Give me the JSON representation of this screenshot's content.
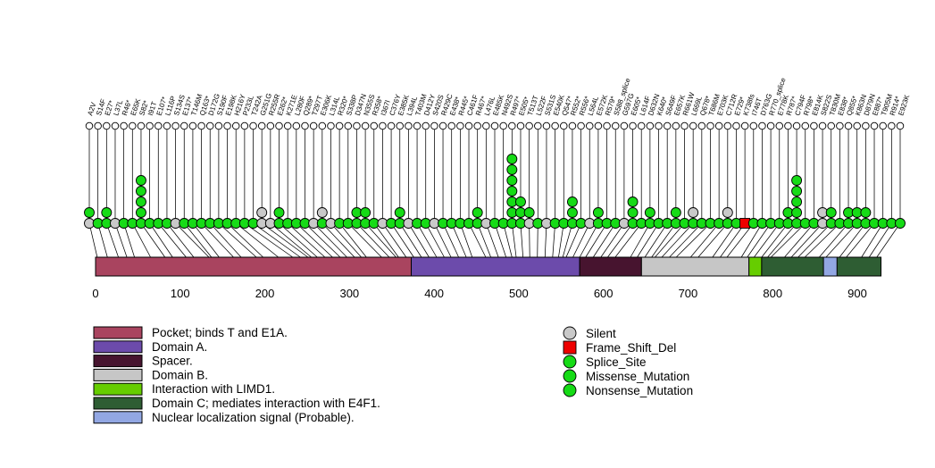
{
  "chart_data": {
    "type": "lollipop",
    "title": "",
    "xlim": [
      0,
      930
    ],
    "x_ticks": [
      0,
      100,
      200,
      300,
      400,
      500,
      600,
      700,
      800,
      900
    ],
    "type_codes": {
      "S": "Silent",
      "M": "Missense_Mutation",
      "N": "Nonsense_Mutation",
      "P": "Splice_Site",
      "F": "Frame_Shift_Del"
    },
    "mutation_colors": {
      "Silent": "#C9C9C9",
      "Missense_Mutation": "#16DB16",
      "Nonsense_Mutation": "#16DB16",
      "Splice_Site": "#16DB16",
      "Frame_Shift_Del": "#EE0000"
    },
    "domains": [
      {
        "name": "Pocket; binds T and E1A.",
        "start": 0,
        "end": 373,
        "color": "#A9445F"
      },
      {
        "name": "Domain A.",
        "start": 373,
        "end": 572,
        "color": "#6C4BAB"
      },
      {
        "name": "Spacer.",
        "start": 572,
        "end": 645,
        "color": "#47142F"
      },
      {
        "name": "Domain B.",
        "start": 645,
        "end": 772,
        "color": "#C6C6C6"
      },
      {
        "name": "Interaction with LIMD1.",
        "start": 772,
        "end": 787,
        "color": "#66CD00"
      },
      {
        "name": "Domain C; mediates interaction with E4F1.",
        "start": 787,
        "end": 928,
        "color": "#2E5D33"
      },
      {
        "name": "Nuclear localization signal (Probable).",
        "start": 860,
        "end": 876,
        "color": "#92A7E3"
      }
    ],
    "mutations": [
      {
        "pos": 2,
        "label": "A2V",
        "stack": [
          "S",
          "M"
        ]
      },
      {
        "pos": 14,
        "label": "S14F",
        "stack": [
          "M"
        ]
      },
      {
        "pos": 27,
        "label": "E27*",
        "stack": [
          "N",
          "M"
        ]
      },
      {
        "pos": 37,
        "label": "L37L",
        "stack": [
          "S"
        ]
      },
      {
        "pos": 46,
        "label": "R46*",
        "stack": [
          "N"
        ]
      },
      {
        "pos": 65,
        "label": "E65K",
        "stack": [
          "M"
        ]
      },
      {
        "pos": 82,
        "label": "S82*",
        "stack": [
          "N",
          "M",
          "M",
          "N",
          "M"
        ]
      },
      {
        "pos": 91,
        "label": "I91T",
        "stack": [
          "M"
        ]
      },
      {
        "pos": 107,
        "label": "E107*",
        "stack": [
          "N"
        ]
      },
      {
        "pos": 116,
        "label": "L116P",
        "stack": [
          "M"
        ]
      },
      {
        "pos": 134,
        "label": "S134S",
        "stack": [
          "S"
        ]
      },
      {
        "pos": 137,
        "label": "E137*",
        "stack": [
          "N"
        ]
      },
      {
        "pos": 146,
        "label": "T146M",
        "stack": [
          "M"
        ]
      },
      {
        "pos": 163,
        "label": "Q163*",
        "stack": [
          "N"
        ]
      },
      {
        "pos": 172,
        "label": "D172G",
        "stack": [
          "M"
        ]
      },
      {
        "pos": 190,
        "label": "S190F",
        "stack": [
          "M"
        ]
      },
      {
        "pos": 198,
        "label": "E198K",
        "stack": [
          "M"
        ]
      },
      {
        "pos": 216,
        "label": "H216Y",
        "stack": [
          "M"
        ]
      },
      {
        "pos": 233,
        "label": "P233L",
        "stack": [
          "M"
        ]
      },
      {
        "pos": 242,
        "label": "T242A",
        "stack": [
          "M"
        ]
      },
      {
        "pos": 251,
        "label": "G251G",
        "stack": [
          "S",
          "S"
        ]
      },
      {
        "pos": 255,
        "label": "R255R",
        "stack": [
          "S"
        ]
      },
      {
        "pos": 262,
        "label": "E262*",
        "stack": [
          "N",
          "M"
        ]
      },
      {
        "pos": 271,
        "label": "K271E",
        "stack": [
          "M"
        ]
      },
      {
        "pos": 280,
        "label": "L280F",
        "stack": [
          "M"
        ]
      },
      {
        "pos": 289,
        "label": "Q289*",
        "stack": [
          "N"
        ]
      },
      {
        "pos": 297,
        "label": "T297T",
        "stack": [
          "S"
        ]
      },
      {
        "pos": 306,
        "label": "E306K",
        "stack": [
          "M",
          "S"
        ]
      },
      {
        "pos": 314,
        "label": "L314L",
        "stack": [
          "S"
        ]
      },
      {
        "pos": 320,
        "label": "R320*",
        "stack": [
          "N"
        ]
      },
      {
        "pos": 338,
        "label": "S338P",
        "stack": [
          "M"
        ]
      },
      {
        "pos": 347,
        "label": "D347N",
        "stack": [
          "M",
          "M"
        ]
      },
      {
        "pos": 355,
        "label": "N355S",
        "stack": [
          "M",
          "M"
        ]
      },
      {
        "pos": 358,
        "label": "R358*",
        "stack": [
          "N"
        ]
      },
      {
        "pos": 367,
        "label": "I367I",
        "stack": [
          "S"
        ]
      },
      {
        "pos": 376,
        "label": "C376Y",
        "stack": [
          "M"
        ]
      },
      {
        "pos": 385,
        "label": "E385K",
        "stack": [
          "M",
          "M"
        ]
      },
      {
        "pos": 394,
        "label": "L394L",
        "stack": [
          "S"
        ]
      },
      {
        "pos": 403,
        "label": "T403M",
        "stack": [
          "M"
        ]
      },
      {
        "pos": 412,
        "label": "D412Y",
        "stack": [
          "M"
        ]
      },
      {
        "pos": 420,
        "label": "S420S",
        "stack": [
          "S"
        ]
      },
      {
        "pos": 429,
        "label": "R429C",
        "stack": [
          "M"
        ]
      },
      {
        "pos": 438,
        "label": "E438*",
        "stack": [
          "N"
        ]
      },
      {
        "pos": 445,
        "label": "R445*",
        "stack": [
          "N"
        ]
      },
      {
        "pos": 461,
        "label": "C461F",
        "stack": [
          "M"
        ]
      },
      {
        "pos": 467,
        "label": "R467*",
        "stack": [
          "N",
          "N"
        ]
      },
      {
        "pos": 476,
        "label": "L476L",
        "stack": [
          "S"
        ]
      },
      {
        "pos": 485,
        "label": "E485K",
        "stack": [
          "M"
        ]
      },
      {
        "pos": 492,
        "label": "N492S",
        "stack": [
          "M"
        ]
      },
      {
        "pos": 497,
        "label": "R497*",
        "stack": [
          "N",
          "M",
          "M",
          "N",
          "M",
          "M",
          "N"
        ]
      },
      {
        "pos": 505,
        "label": "E505*",
        "stack": [
          "N",
          "M",
          "M"
        ]
      },
      {
        "pos": 513,
        "label": "T513T",
        "stack": [
          "S",
          "M"
        ]
      },
      {
        "pos": 522,
        "label": "L522F",
        "stack": [
          "M"
        ]
      },
      {
        "pos": 531,
        "label": "S531S",
        "stack": [
          "S"
        ]
      },
      {
        "pos": 540,
        "label": "E540K",
        "stack": [
          "M"
        ]
      },
      {
        "pos": 547,
        "label": "Q547*",
        "stack": [
          "N"
        ]
      },
      {
        "pos": 552,
        "label": "R552*",
        "stack": [
          "N",
          "N",
          "M"
        ]
      },
      {
        "pos": 556,
        "label": "R556*",
        "stack": [
          "N"
        ]
      },
      {
        "pos": 564,
        "label": "L564L",
        "stack": [
          "S"
        ]
      },
      {
        "pos": 572,
        "label": "E572K",
        "stack": [
          "M",
          "M"
        ]
      },
      {
        "pos": 579,
        "label": "R579*",
        "stack": [
          "N"
        ]
      },
      {
        "pos": 588,
        "label": "S588_splice",
        "stack": [
          "P"
        ]
      },
      {
        "pos": 597,
        "label": "G597G",
        "stack": [
          "S"
        ]
      },
      {
        "pos": 605,
        "label": "E605*",
        "stack": [
          "N",
          "M",
          "M"
        ]
      },
      {
        "pos": 614,
        "label": "L614F",
        "stack": [
          "M"
        ]
      },
      {
        "pos": 632,
        "label": "D632N",
        "stack": [
          "M",
          "M"
        ]
      },
      {
        "pos": 640,
        "label": "K640*",
        "stack": [
          "N"
        ]
      },
      {
        "pos": 649,
        "label": "S649F",
        "stack": [
          "M"
        ]
      },
      {
        "pos": 657,
        "label": "E657K",
        "stack": [
          "M",
          "M"
        ]
      },
      {
        "pos": 661,
        "label": "R661W",
        "stack": [
          "M"
        ]
      },
      {
        "pos": 669,
        "label": "L669L",
        "stack": [
          "M",
          "S"
        ]
      },
      {
        "pos": 678,
        "label": "Q678*",
        "stack": [
          "N"
        ]
      },
      {
        "pos": 686,
        "label": "T686M",
        "stack": [
          "M"
        ]
      },
      {
        "pos": 703,
        "label": "E703K",
        "stack": [
          "M"
        ]
      },
      {
        "pos": 712,
        "label": "C712R",
        "stack": [
          "M",
          "S"
        ]
      },
      {
        "pos": 729,
        "label": "E729*",
        "stack": [
          "N"
        ]
      },
      {
        "pos": 738,
        "label": "K738fs",
        "stack": [
          "F"
        ]
      },
      {
        "pos": 746,
        "label": "I746T",
        "stack": [
          "M"
        ]
      },
      {
        "pos": 763,
        "label": "D763G",
        "stack": [
          "M"
        ]
      },
      {
        "pos": 770,
        "label": "R770_splice",
        "stack": [
          "P"
        ]
      },
      {
        "pos": 778,
        "label": "E778K",
        "stack": [
          "M"
        ]
      },
      {
        "pos": 787,
        "label": "R787*",
        "stack": [
          "N",
          "M"
        ]
      },
      {
        "pos": 794,
        "label": "C794F",
        "stack": [
          "M",
          "M",
          "N",
          "M",
          "M"
        ]
      },
      {
        "pos": 798,
        "label": "R798*",
        "stack": [
          "N"
        ]
      },
      {
        "pos": 814,
        "label": "E814K",
        "stack": [
          "M"
        ]
      },
      {
        "pos": 822,
        "label": "S822S",
        "stack": [
          "S",
          "S"
        ]
      },
      {
        "pos": 830,
        "label": "T830M",
        "stack": [
          "M",
          "M"
        ]
      },
      {
        "pos": 838,
        "label": "E838*",
        "stack": [
          "N"
        ]
      },
      {
        "pos": 855,
        "label": "Q855*",
        "stack": [
          "N",
          "M"
        ]
      },
      {
        "pos": 863,
        "label": "K863N",
        "stack": [
          "M",
          "M"
        ]
      },
      {
        "pos": 879,
        "label": "D879N",
        "stack": [
          "M",
          "M"
        ]
      },
      {
        "pos": 887,
        "label": "E887*",
        "stack": [
          "N"
        ]
      },
      {
        "pos": 905,
        "label": "T905M",
        "stack": [
          "M"
        ]
      },
      {
        "pos": 914,
        "label": "R914*",
        "stack": [
          "N"
        ]
      },
      {
        "pos": 923,
        "label": "E923K",
        "stack": [
          "M"
        ]
      }
    ]
  },
  "legend_domains": {
    "items": [
      {
        "label": "Pocket; binds T and E1A.",
        "color": "#A9445F"
      },
      {
        "label": "Domain A.",
        "color": "#6C4BAB"
      },
      {
        "label": "Spacer.",
        "color": "#47142F"
      },
      {
        "label": "Domain B.",
        "color": "#C6C6C6"
      },
      {
        "label": "Interaction with LIMD1.",
        "color": "#66CD00"
      },
      {
        "label": "Domain C; mediates interaction with E4F1.",
        "color": "#2E5D33"
      },
      {
        "label": "Nuclear localization signal (Probable).",
        "color": "#92A7E3"
      }
    ]
  },
  "legend_mutations": {
    "items": [
      {
        "label": "Silent",
        "color": "#C9C9C9",
        "shape": "circle"
      },
      {
        "label": "Frame_Shift_Del",
        "color": "#EE0000",
        "shape": "square"
      },
      {
        "label": "Splice_Site",
        "color": "#16DB16",
        "shape": "circle"
      },
      {
        "label": "Missense_Mutation",
        "color": "#16DB16",
        "shape": "circle"
      },
      {
        "label": "Nonsense_Mutation",
        "color": "#16DB16",
        "shape": "circle"
      }
    ]
  }
}
